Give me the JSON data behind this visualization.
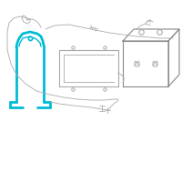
{
  "background_color": "#ffffff",
  "highlight_color": "#00bcd4",
  "line_color": "#aaaaaa",
  "dark_line": "#888888",
  "figsize": [
    2.0,
    2.0
  ],
  "dpi": 100
}
